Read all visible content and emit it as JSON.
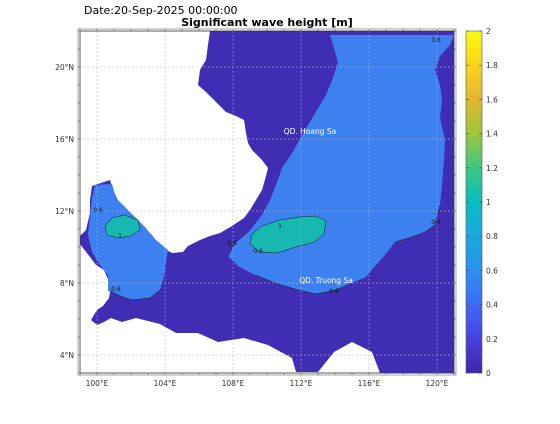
{
  "header": {
    "date_text": "Date:20-Sep-2025 00:00:00",
    "title": "Significant wave height [m]"
  },
  "map": {
    "x_ticks": [
      "100°E",
      "104°E",
      "108°E",
      "112°E",
      "116°E",
      "120°E"
    ],
    "y_ticks": [
      "4°N",
      "8°N",
      "12°N",
      "16°N",
      "20°N"
    ],
    "place_labels": [
      "QD. Hoang Sa",
      "QD. Truong Sa"
    ],
    "contour_labels": [
      "0.6",
      "1",
      "0.6",
      "0.6",
      "1",
      "0.6",
      "0.6",
      "0.6",
      "0.6"
    ],
    "colors": {
      "land": "#ffffff",
      "low_wave": "#3f2db3",
      "mid_wave": "#3d80f0",
      "high_wave": "#17b8b0",
      "grid": "#bdbdbd"
    }
  },
  "colorbar": {
    "ticks": [
      "0",
      "0.2",
      "0.4",
      "0.6",
      "0.8",
      "1",
      "1.2",
      "1.4",
      "1.6",
      "1.8",
      "2"
    ],
    "stops": [
      "#3e26a8",
      "#4742e0",
      "#3d6af9",
      "#2b90ef",
      "#1aa9de",
      "#09bec0",
      "#3dc87f",
      "#9cc63e",
      "#e2b72f",
      "#fdd21f",
      "#f9fb0e"
    ]
  }
}
